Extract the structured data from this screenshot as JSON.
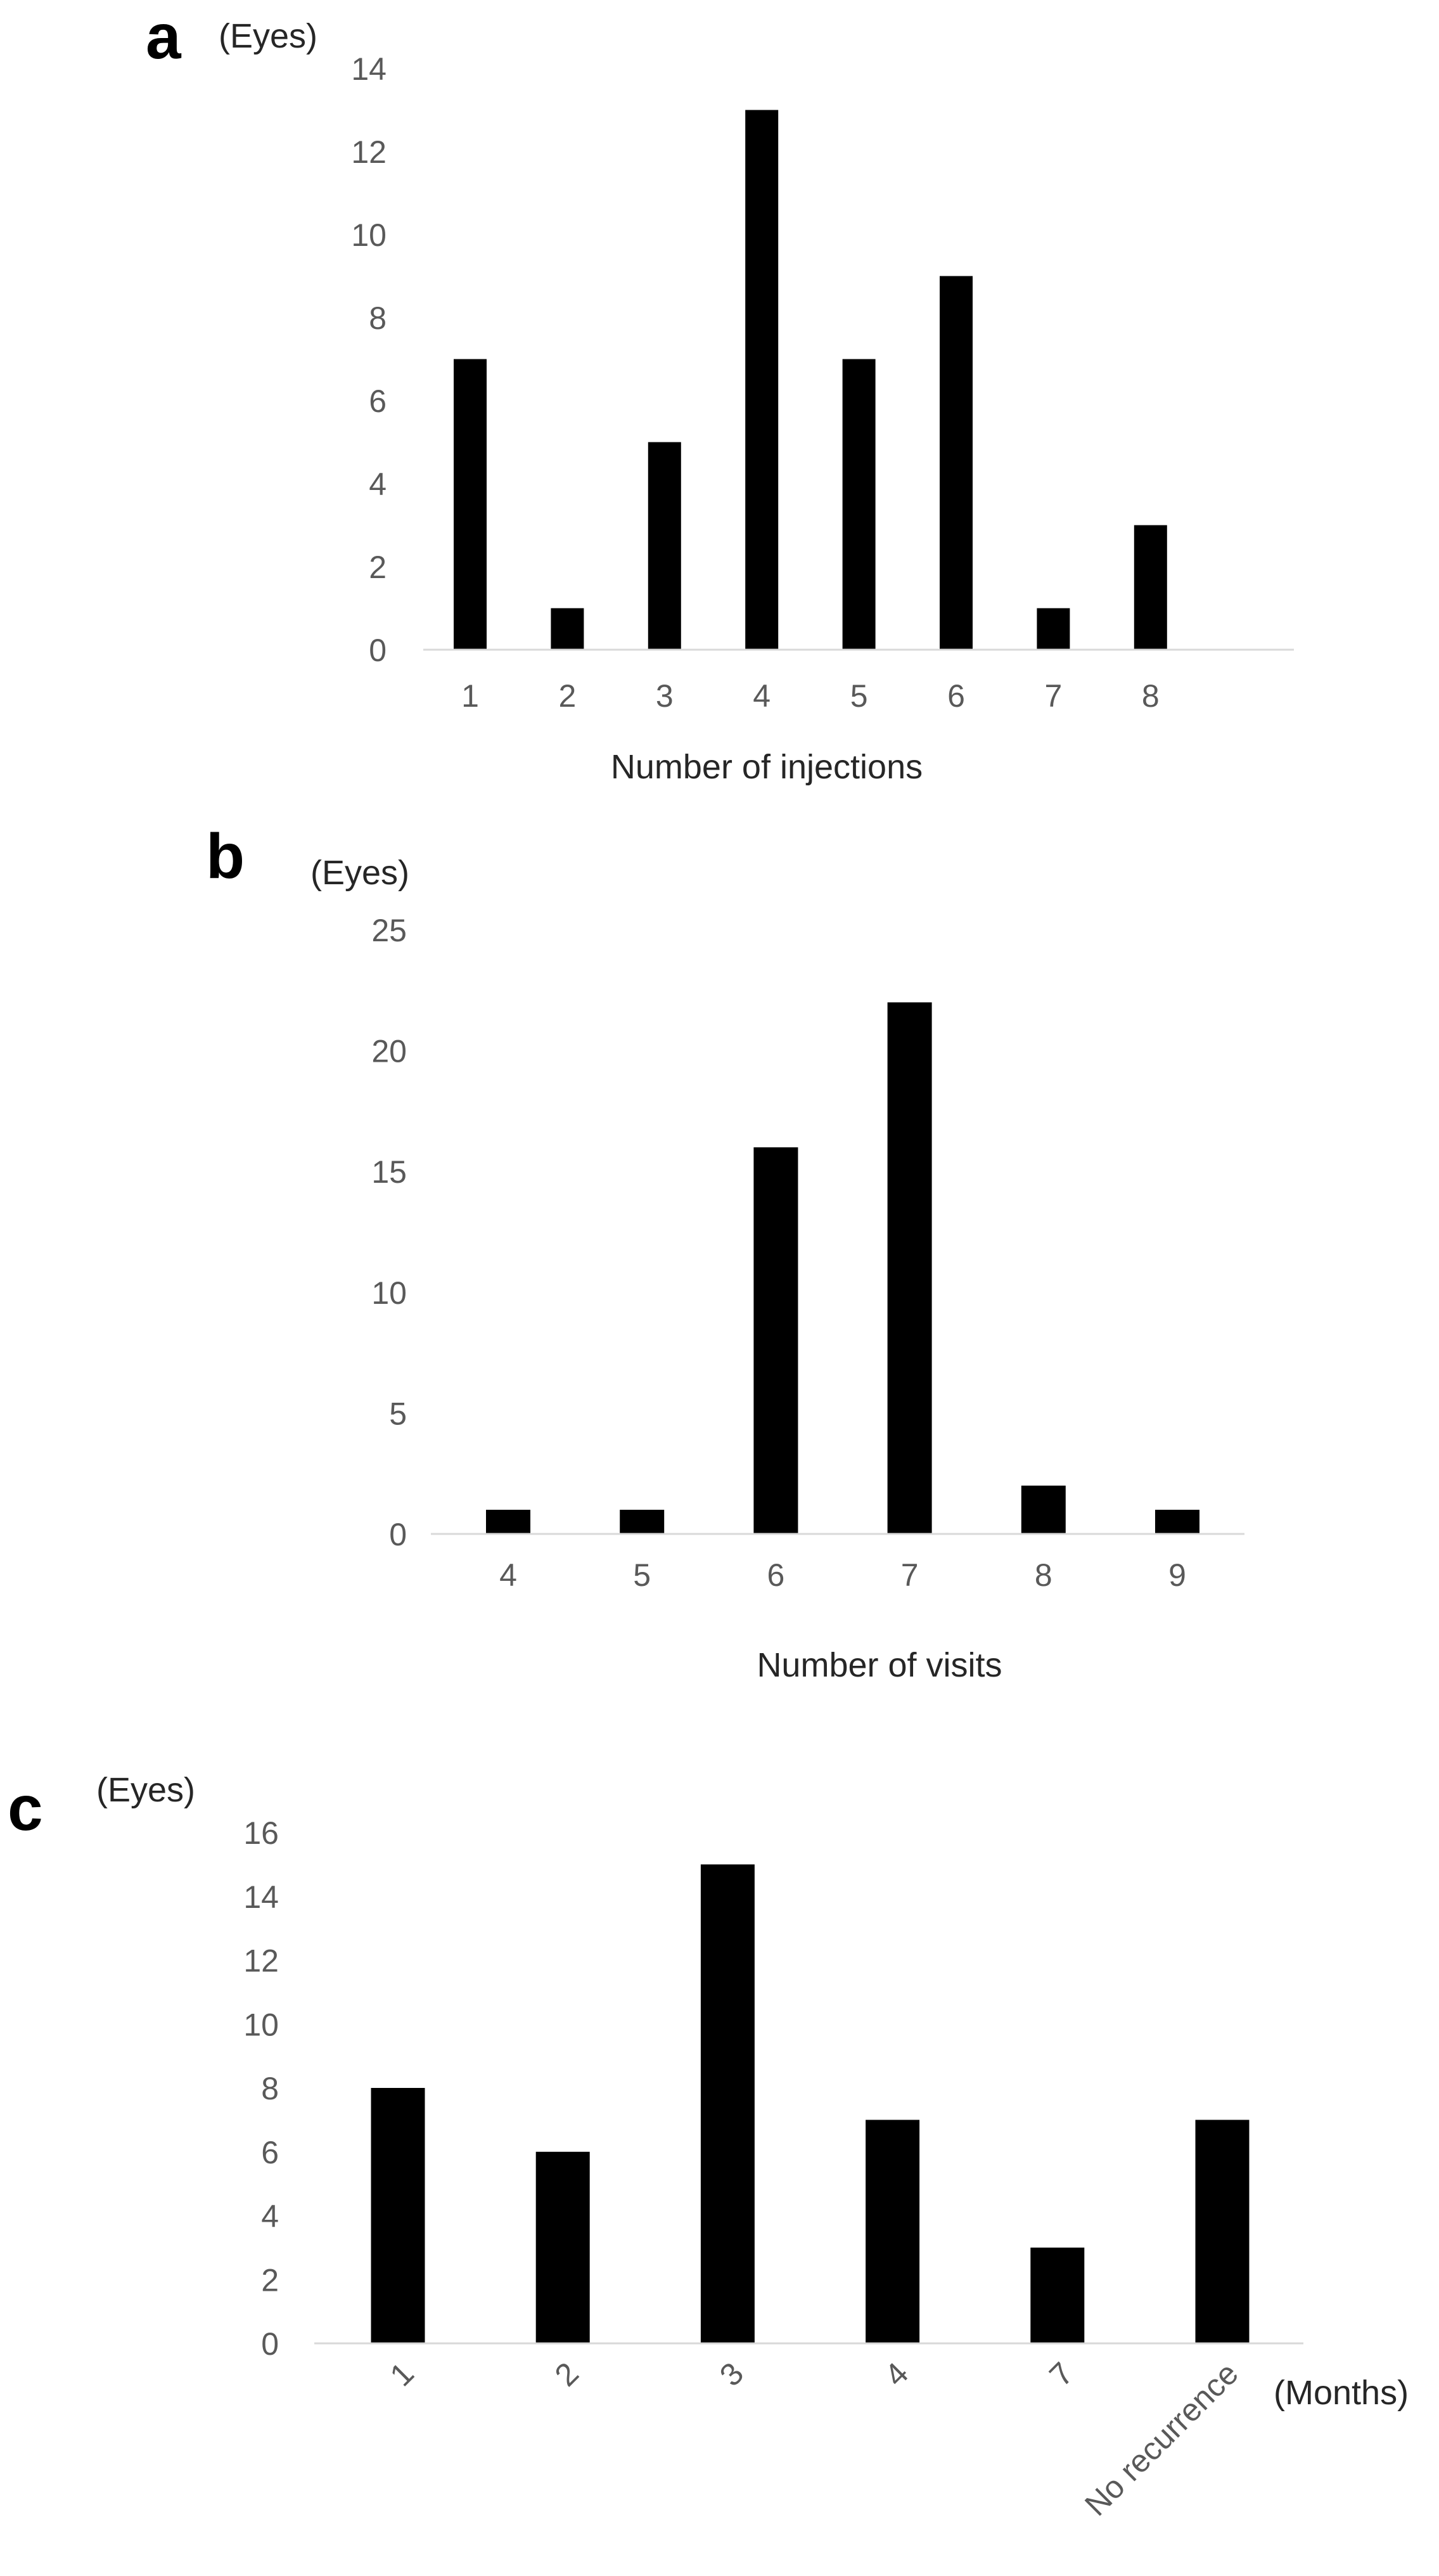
{
  "chart_data": [
    {
      "panel": "a",
      "type": "bar",
      "unit_label": "(Eyes)",
      "xlabel": "Number of injections",
      "categories": [
        "1",
        "2",
        "3",
        "4",
        "5",
        "6",
        "7",
        "8"
      ],
      "values": [
        7,
        1,
        5,
        13,
        7,
        9,
        1,
        3
      ],
      "ylim": [
        0,
        14
      ],
      "yticks": [
        0,
        2,
        4,
        6,
        8,
        10,
        12,
        14
      ],
      "bar_color": "#000000",
      "grid": false
    },
    {
      "panel": "b",
      "type": "bar",
      "unit_label": "(Eyes)",
      "xlabel": "Number of visits",
      "categories": [
        "4",
        "5",
        "6",
        "7",
        "8",
        "9"
      ],
      "values": [
        1,
        1,
        16,
        22,
        2,
        1
      ],
      "ylim": [
        0,
        25
      ],
      "yticks": [
        0,
        5,
        10,
        15,
        20,
        25
      ],
      "bar_color": "#000000",
      "grid": false
    },
    {
      "panel": "c",
      "type": "bar",
      "unit_label": "(Eyes)",
      "xlabel": "(Months)",
      "categories": [
        "1",
        "2",
        "3",
        "4",
        "7",
        "No recurrence"
      ],
      "values": [
        8,
        6,
        15,
        7,
        3,
        7
      ],
      "ylim": [
        0,
        16
      ],
      "yticks": [
        0,
        2,
        4,
        6,
        8,
        10,
        12,
        14,
        16
      ],
      "bar_color": "#000000",
      "grid": false
    }
  ]
}
